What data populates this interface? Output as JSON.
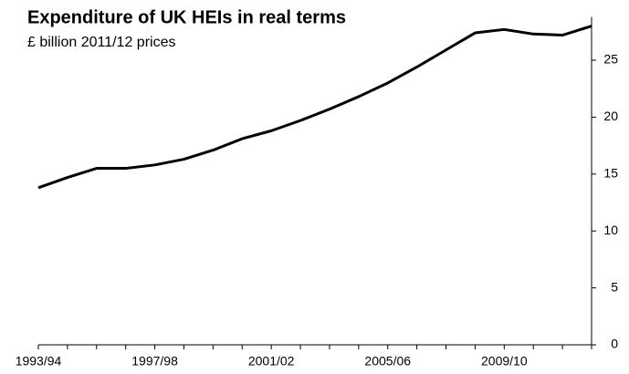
{
  "chart_data": {
    "type": "line",
    "title": "Expenditure of UK HEIs in real terms",
    "subtitle": "£ billion 2011/12 prices",
    "categories": [
      "1993/94",
      null,
      null,
      null,
      "1997/98",
      null,
      null,
      null,
      "2001/02",
      null,
      null,
      null,
      "2005/06",
      null,
      null,
      null,
      "2009/10",
      null,
      null,
      null
    ],
    "series": [
      {
        "color": "#000000",
        "values": [
          13.8,
          14.7,
          15.5,
          15.5,
          15.8,
          16.3,
          17.1,
          18.1,
          18.8,
          19.7,
          20.7,
          21.8,
          23.0,
          24.4,
          25.9,
          27.4,
          27.7,
          27.3,
          27.2,
          28.0
        ]
      }
    ],
    "ylim": [
      0,
      28.8
    ],
    "yticks": [
      0,
      5,
      10,
      15,
      20,
      25
    ],
    "y_axis_side": "right",
    "grid": false
  }
}
